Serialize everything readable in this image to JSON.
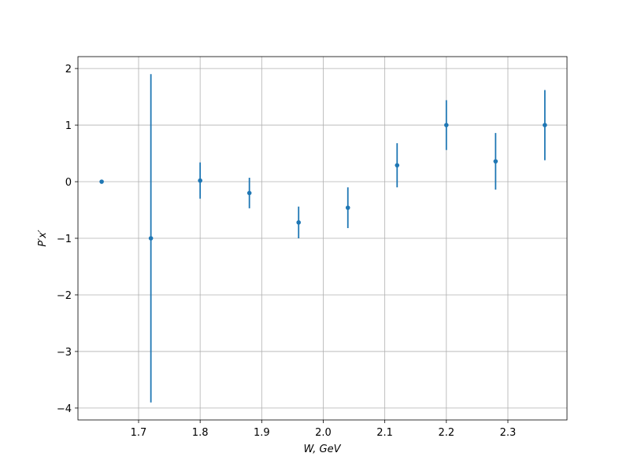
{
  "chart_data": {
    "type": "errorbar",
    "xlabel": "W, GeV",
    "ylabel": "P′x′",
    "x": [
      1.64,
      1.72,
      1.8,
      1.88,
      1.96,
      2.04,
      2.12,
      2.2,
      2.28,
      2.36
    ],
    "series": [
      {
        "color": "#1f77b4",
        "values": [
          0,
          -1.0,
          0.02,
          -0.2,
          -0.72,
          -0.46,
          0.29,
          1.0,
          0.36,
          1.0
        ],
        "errors": [
          0,
          2.9,
          0.32,
          0.27,
          0.28,
          0.36,
          0.39,
          0.44,
          0.5,
          0.62
        ]
      }
    ],
    "xlim": [
      1.6015,
      2.396
    ],
    "ylim": [
      -4.21,
      2.21
    ],
    "xticks": [
      1.7,
      1.8,
      1.9,
      {
        "value": 2,
        "label": "2.0"
      },
      2.1,
      2.2,
      2.3
    ],
    "yticks": [
      {
        "value": -4,
        "label": "−4"
      },
      {
        "value": -3,
        "label": "−3"
      },
      {
        "value": -2,
        "label": "−2"
      },
      {
        "value": -1,
        "label": "−1"
      },
      0,
      1,
      2
    ],
    "grid": true
  }
}
